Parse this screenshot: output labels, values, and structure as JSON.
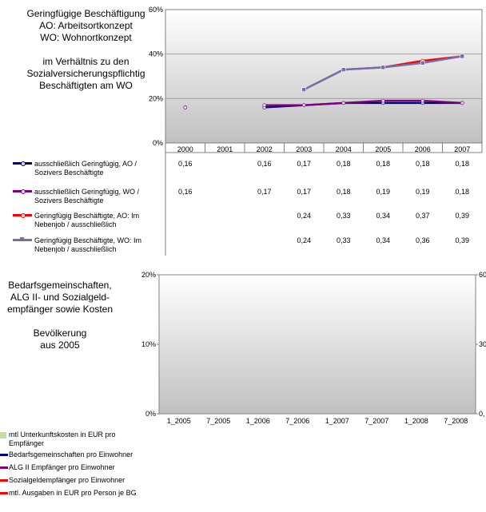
{
  "chart_data": [
    {
      "type": "line",
      "title_lines": [
        "Geringfügige Beschäftigung",
        "AO: Arbeitsortkonzept",
        "WO: Wohnortkonzept",
        "",
        "im Verhältnis zu den",
        "Sozialversicherungspflichtig",
        "Beschäftigten am WO"
      ],
      "categories": [
        "2000",
        "2001",
        "2002",
        "2003",
        "2004",
        "2005",
        "2006",
        "2007"
      ],
      "y_ticks": [
        "0%",
        "20%",
        "40%",
        "60%"
      ],
      "ylim": [
        0,
        0.6
      ],
      "grid": true,
      "legend_position": "bottom-table",
      "series": [
        {
          "name_lines": [
            "ausschließlich Geringfügig, AO /",
            "Sozivers Beschäftigte"
          ],
          "color": "#000080",
          "values": [
            0.16,
            null,
            0.16,
            0.17,
            0.18,
            0.18,
            0.18,
            0.18
          ],
          "labels": [
            "0,16",
            "",
            "0,16",
            "0,17",
            "0,18",
            "0,18",
            "0,18",
            "0,18"
          ]
        },
        {
          "name_lines": [
            "ausschließlich Geringfügig, WO /",
            "Sozivers Beschäftigte"
          ],
          "color": "#800080",
          "values": [
            0.16,
            null,
            0.17,
            0.17,
            0.18,
            0.19,
            0.19,
            0.18
          ],
          "labels": [
            "0,16",
            "",
            "0,17",
            "0,17",
            "0,18",
            "0,19",
            "0,19",
            "0,18"
          ]
        },
        {
          "name_lines": [
            "Geringfügig Beschäftigte, AO: Im",
            "Nebenjob / ausschließlich"
          ],
          "color": "#ff0000",
          "values": [
            null,
            null,
            null,
            0.24,
            0.33,
            0.34,
            0.37,
            0.39
          ],
          "labels": [
            "",
            "",
            "",
            "0,24",
            "0,33",
            "0,34",
            "0,37",
            "0,39"
          ]
        },
        {
          "name_lines": [
            "Geringfügig Beschäftigte, WO: Im",
            "Nebenjob / ausschließlich"
          ],
          "color": "#7070b0",
          "values": [
            null,
            null,
            null,
            0.24,
            0.33,
            0.34,
            0.36,
            0.39
          ],
          "labels": [
            "",
            "",
            "",
            "0,24",
            "0,33",
            "0,34",
            "0,36",
            "0,39"
          ]
        }
      ]
    },
    {
      "type": "bar",
      "title_lines": [
        "Bedarfsgemeinschaften,",
        "ALG II- und Sozialgeld-",
        "empfänger sowie  Kosten",
        "",
        "Bevölkerung",
        "aus 2005"
      ],
      "categories": [
        "1_2005",
        "7_2005",
        "1_2006",
        "7_2006",
        "1_2007",
        "7_2007",
        "1_2008",
        "7_2008"
      ],
      "y_ticks": [
        "0%",
        "10%",
        "20%"
      ],
      "ylim": [
        0,
        0.2
      ],
      "y2_ticks": [
        "0,",
        "30",
        "60"
      ],
      "legend_position": "bottom-left",
      "series": [
        {
          "name_lines": [
            "mtl Unterkunftskosten in EUR pro",
            "Empfänger"
          ],
          "color": "#c8dca8",
          "kind": "bar"
        },
        {
          "name_lines": [
            "Bedarfsgemeinschaften pro Einwohner"
          ],
          "color": "#000080",
          "kind": "line"
        },
        {
          "name_lines": [
            "ALG II Empfänger pro Einwohner"
          ],
          "color": "#800080",
          "kind": "line"
        },
        {
          "name_lines": [
            "Sozialgeldempfänger pro Einwohner"
          ],
          "color": "#ff0000",
          "kind": "line"
        },
        {
          "name_lines": [
            "mtl. Ausgaben in EUR pro Person je BG"
          ],
          "color": "#ff0000",
          "kind": "line"
        }
      ]
    }
  ]
}
